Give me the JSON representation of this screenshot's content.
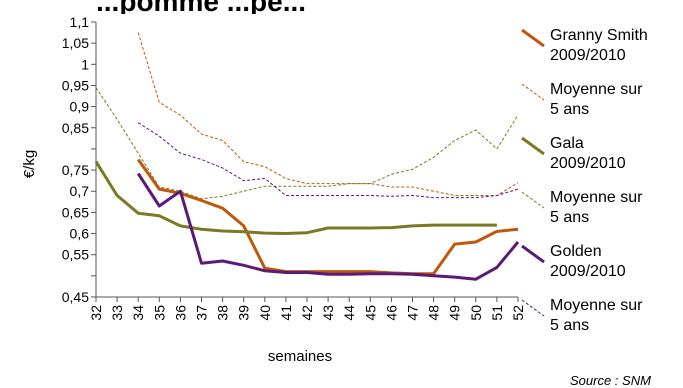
{
  "chart_data": {
    "type": "line",
    "title": "...pomme ...pe...",
    "xlabel": "semaines",
    "ylabel": "€/kg",
    "x": [
      32,
      33,
      34,
      35,
      36,
      37,
      38,
      39,
      40,
      41,
      42,
      43,
      44,
      45,
      46,
      47,
      48,
      49,
      50,
      51,
      52
    ],
    "y_ticks": [
      "1,1",
      "1,05",
      "1",
      "0,95",
      "0,9",
      "0,85",
      "0,75",
      "0,7",
      "0,65",
      "0,6",
      "0,55",
      "0,45"
    ],
    "ylim": [
      0.45,
      1.1
    ],
    "series": [
      {
        "name": "Granny Smith\n2009/2010",
        "style": "solid",
        "color": "#c0580b",
        "values": [
          null,
          null,
          0.775,
          0.705,
          0.695,
          0.678,
          0.66,
          0.618,
          0.518,
          0.51,
          0.51,
          0.51,
          0.51,
          0.51,
          0.507,
          0.505,
          0.505,
          0.575,
          0.58,
          0.605,
          0.61
        ]
      },
      {
        "name": "Moyenne sur\n5 ans",
        "style": "dashed",
        "color": "#c0580b",
        "values": [
          null,
          null,
          1.075,
          0.91,
          0.88,
          0.835,
          0.82,
          0.77,
          0.758,
          0.73,
          0.718,
          0.718,
          0.718,
          0.718,
          0.71,
          0.71,
          0.7,
          0.69,
          0.69,
          0.69,
          0.72
        ]
      },
      {
        "name": "Gala\n2009/2010",
        "style": "solid",
        "color": "#7a7a22",
        "values": [
          0.77,
          0.69,
          0.648,
          0.642,
          0.618,
          0.61,
          0.606,
          0.604,
          0.601,
          0.6,
          0.602,
          0.613,
          0.613,
          0.613,
          0.614,
          0.618,
          0.62,
          0.62,
          0.62,
          0.62,
          null
        ]
      },
      {
        "name": "Moyenne sur\n5 ans",
        "style": "dashed",
        "color": "#7a7a22",
        "values": [
          0.945,
          0.87,
          0.79,
          0.71,
          0.7,
          0.682,
          0.688,
          0.7,
          0.712,
          0.712,
          0.712,
          0.712,
          0.718,
          0.718,
          0.74,
          0.752,
          0.78,
          0.82,
          0.845,
          0.8,
          0.88
        ]
      },
      {
        "name": "Golden\n2009/2010",
        "style": "solid",
        "color": "#5c1a78",
        "values": [
          null,
          null,
          0.742,
          0.665,
          0.7,
          0.53,
          0.535,
          0.525,
          0.512,
          0.508,
          0.508,
          0.504,
          0.504,
          0.505,
          0.505,
          0.504,
          0.5,
          0.497,
          0.492,
          0.52,
          0.58
        ]
      },
      {
        "name": "Moyenne sur\n5 ans",
        "style": "dashed",
        "color": "#5c1a78",
        "values": [
          null,
          null,
          0.862,
          0.83,
          0.79,
          0.775,
          0.755,
          0.725,
          0.73,
          0.69,
          0.69,
          0.69,
          0.69,
          0.69,
          0.688,
          0.69,
          0.685,
          0.685,
          0.685,
          0.69,
          0.705
        ]
      }
    ],
    "grid": false,
    "legend_position": "right",
    "source": "Source : SNM"
  }
}
